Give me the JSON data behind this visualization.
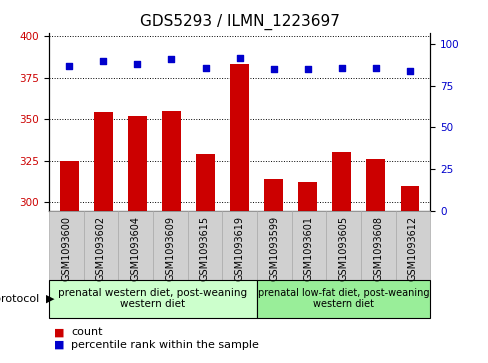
{
  "title": "GDS5293 / ILMN_1223697",
  "samples": [
    "GSM1093600",
    "GSM1093602",
    "GSM1093604",
    "GSM1093609",
    "GSM1093615",
    "GSM1093619",
    "GSM1093599",
    "GSM1093601",
    "GSM1093605",
    "GSM1093608",
    "GSM1093612"
  ],
  "bar_values": [
    325,
    354,
    352,
    355,
    329,
    383,
    314,
    312,
    330,
    326,
    310
  ],
  "dot_values": [
    87,
    90,
    88,
    91,
    86,
    92,
    85,
    85,
    86,
    86,
    84
  ],
  "bar_color": "#cc0000",
  "dot_color": "#0000cc",
  "ylim_left": [
    295,
    402
  ],
  "ylim_right": [
    0,
    107
  ],
  "yticks_left": [
    300,
    325,
    350,
    375,
    400
  ],
  "yticks_right": [
    0,
    25,
    50,
    75,
    100
  ],
  "group1_label": "prenatal western diet, post-weaning\nwestern diet",
  "group2_label": "prenatal low-fat diet, post-weaning\nwestern diet",
  "group1_count": 6,
  "group2_count": 5,
  "protocol_label": "protocol",
  "legend_bar_label": "count",
  "legend_dot_label": "percentile rank within the sample",
  "xlabel_bg_color": "#d0d0d0",
  "xlabel_border_color": "#aaaaaa",
  "group1_color": "#ccffcc",
  "group2_color": "#99ee99",
  "title_fontsize": 11,
  "tick_fontsize": 7.5,
  "xlabel_fontsize": 7,
  "legend_fontsize": 8,
  "proto_fontsize": 8,
  "group_fontsize": 7.5
}
